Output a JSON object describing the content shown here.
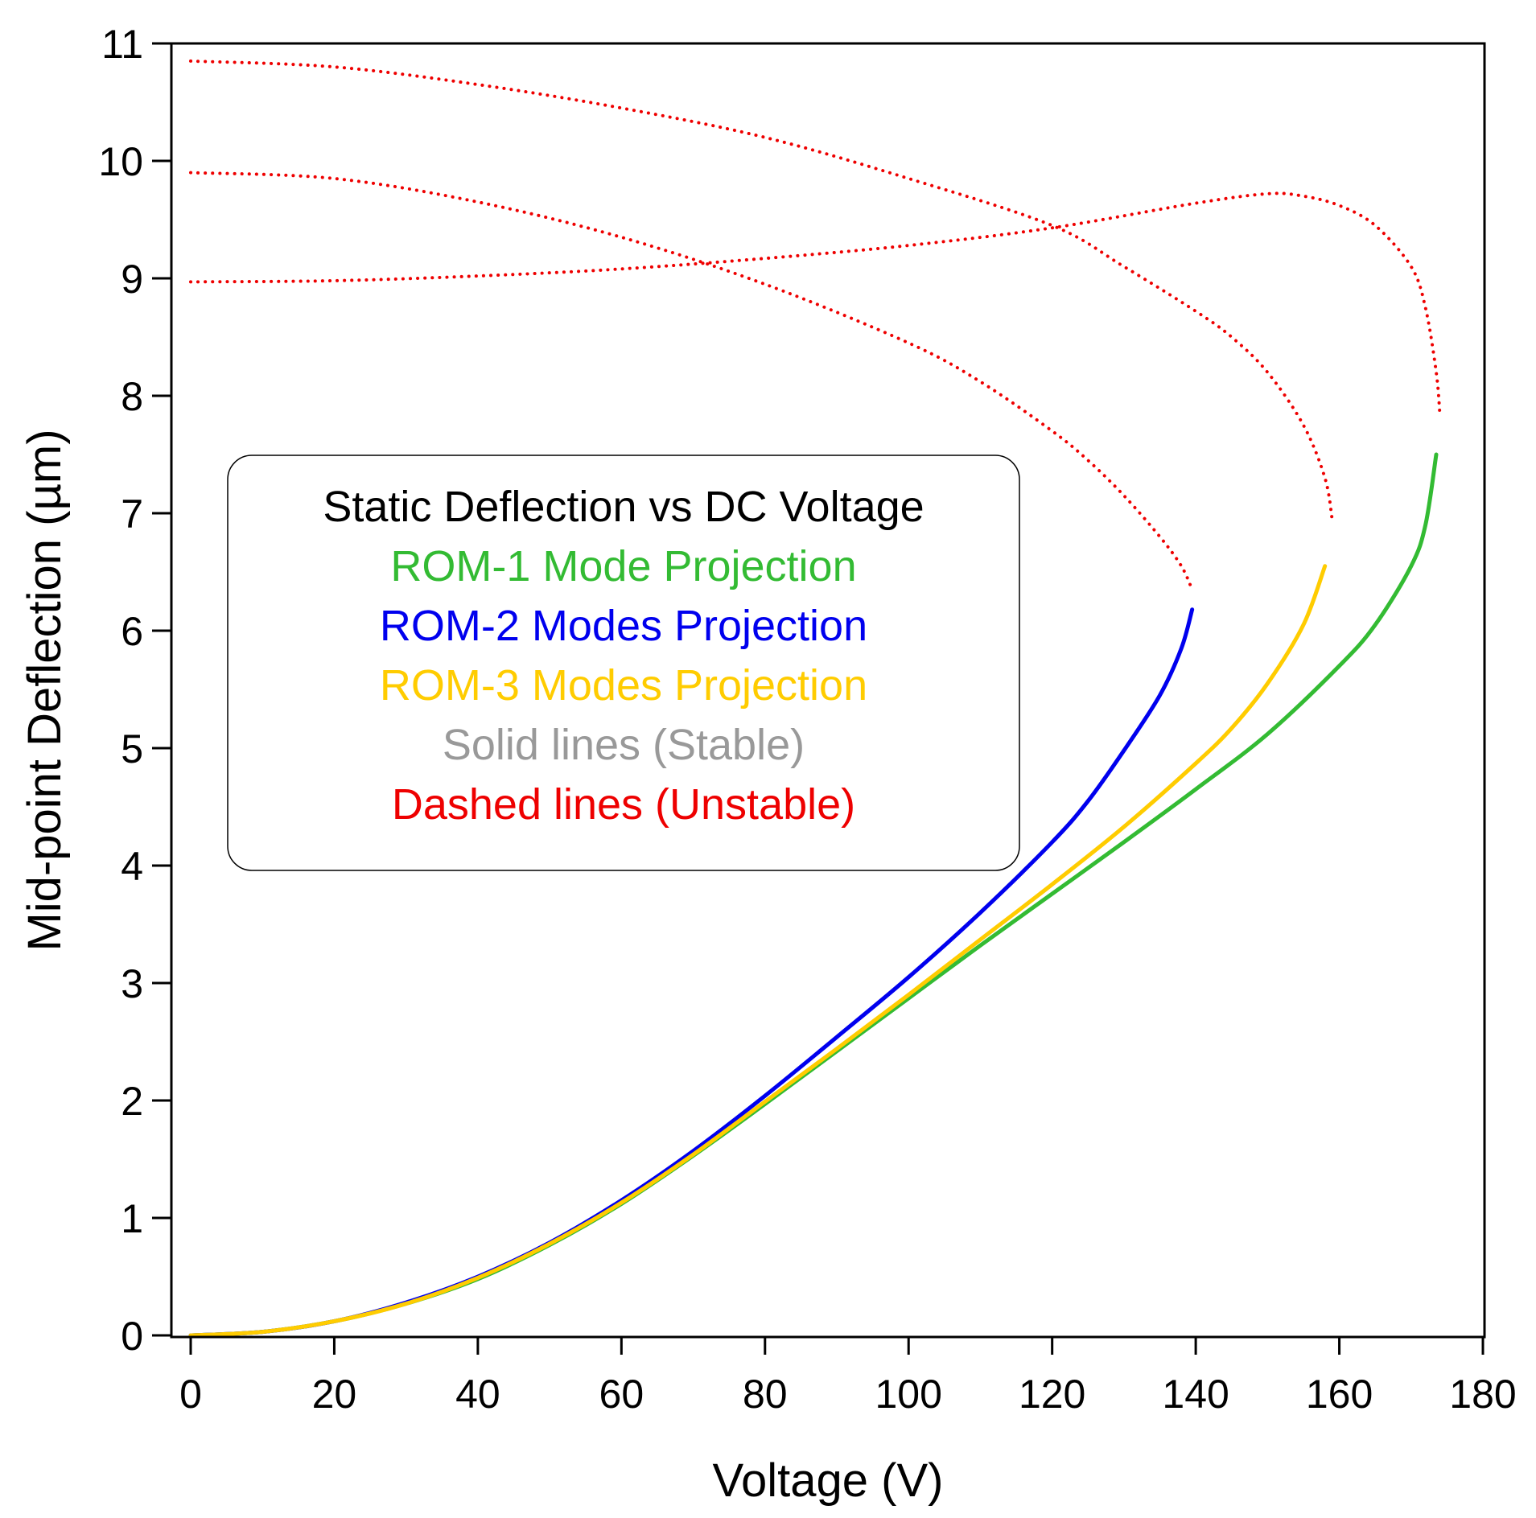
{
  "chart_data": {
    "type": "line",
    "title": "Static Deflection vs DC Voltage",
    "xlabel": "Voltage (V)",
    "ylabel": "Mid-point Deflection (µm)",
    "xlim": [
      0,
      180
    ],
    "ylim": [
      0,
      11
    ],
    "xticks": [
      "0",
      "20",
      "40",
      "60",
      "80",
      "100",
      "120",
      "140",
      "160",
      "180"
    ],
    "yticks": [
      "0",
      "1",
      "2",
      "3",
      "4",
      "5",
      "6",
      "7",
      "8",
      "9",
      "10",
      "11"
    ],
    "grid": false,
    "legend_position": "center-left",
    "legend_lines": [
      {
        "text": "Static Deflection vs DC Voltage",
        "color": "#000000"
      },
      {
        "text": "ROM-1 Mode Projection",
        "color": "#33bb33"
      },
      {
        "text": "ROM-2 Modes Projection",
        "color": "#0000ee"
      },
      {
        "text": "ROM-3 Modes Projection",
        "color": "#ffcc00"
      },
      {
        "text": "Solid lines (Stable)",
        "color": "#999999"
      },
      {
        "text": "Dashed lines (Unstable)",
        "color": "#ee0000"
      }
    ],
    "series": [
      {
        "name": "ROM-1 Mode Projection (stable)",
        "color": "#33bb33",
        "style": "solid",
        "x": [
          0,
          10,
          20,
          30,
          40,
          50,
          60,
          70,
          80,
          90,
          100,
          110,
          120,
          130,
          140,
          150,
          160,
          165,
          170,
          172,
          173.5
        ],
        "y": [
          0,
          0.03,
          0.12,
          0.27,
          0.48,
          0.77,
          1.12,
          1.53,
          1.97,
          2.42,
          2.87,
          3.32,
          3.76,
          4.2,
          4.65,
          5.12,
          5.7,
          6.05,
          6.55,
          6.9,
          7.5
        ]
      },
      {
        "name": "ROM-2 Modes Projection (stable)",
        "color": "#0000ee",
        "style": "solid",
        "x": [
          0,
          10,
          20,
          30,
          40,
          50,
          60,
          70,
          80,
          90,
          100,
          110,
          120,
          125,
          130,
          135,
          138,
          139.5
        ],
        "y": [
          0,
          0.03,
          0.12,
          0.28,
          0.5,
          0.79,
          1.15,
          1.57,
          2.04,
          2.54,
          3.05,
          3.6,
          4.2,
          4.55,
          4.98,
          5.45,
          5.85,
          6.18
        ]
      },
      {
        "name": "ROM-3 Modes Projection (stable)",
        "color": "#ffcc00",
        "style": "solid",
        "x": [
          0,
          10,
          20,
          30,
          40,
          50,
          60,
          70,
          80,
          90,
          100,
          110,
          120,
          130,
          140,
          145,
          150,
          155,
          158
        ],
        "y": [
          0,
          0.03,
          0.12,
          0.27,
          0.49,
          0.78,
          1.13,
          1.54,
          1.99,
          2.44,
          2.9,
          3.37,
          3.84,
          4.33,
          4.87,
          5.17,
          5.55,
          6.05,
          6.55
        ]
      },
      {
        "name": "ROM-2 Modes Projection (unstable)",
        "color": "#ee0000",
        "style": "dashed",
        "x": [
          0,
          20,
          40,
          60,
          80,
          100,
          110,
          120,
          125,
          130,
          135,
          138,
          139.5
        ],
        "y": [
          9.9,
          9.85,
          9.65,
          9.35,
          8.95,
          8.45,
          8.12,
          7.7,
          7.45,
          7.15,
          6.8,
          6.55,
          6.35
        ]
      },
      {
        "name": "ROM-3 Modes Projection (unstable)",
        "color": "#ee0000",
        "style": "dashed",
        "x": [
          0,
          20,
          40,
          60,
          80,
          100,
          120,
          130,
          140,
          145,
          150,
          155,
          158,
          159
        ],
        "y": [
          10.85,
          10.8,
          10.65,
          10.45,
          10.2,
          9.85,
          9.45,
          9.1,
          8.72,
          8.5,
          8.2,
          7.75,
          7.3,
          6.95
        ]
      },
      {
        "name": "ROM-1 Mode Projection (unstable)",
        "color": "#ee0000",
        "style": "dashed",
        "x": [
          0,
          20,
          40,
          60,
          80,
          100,
          120,
          140,
          150,
          155,
          160,
          165,
          170,
          172,
          173.5,
          174
        ],
        "y": [
          8.97,
          8.98,
          9.02,
          9.08,
          9.17,
          9.28,
          9.43,
          9.64,
          9.72,
          9.7,
          9.62,
          9.45,
          9.1,
          8.75,
          8.2,
          7.85
        ]
      }
    ]
  }
}
